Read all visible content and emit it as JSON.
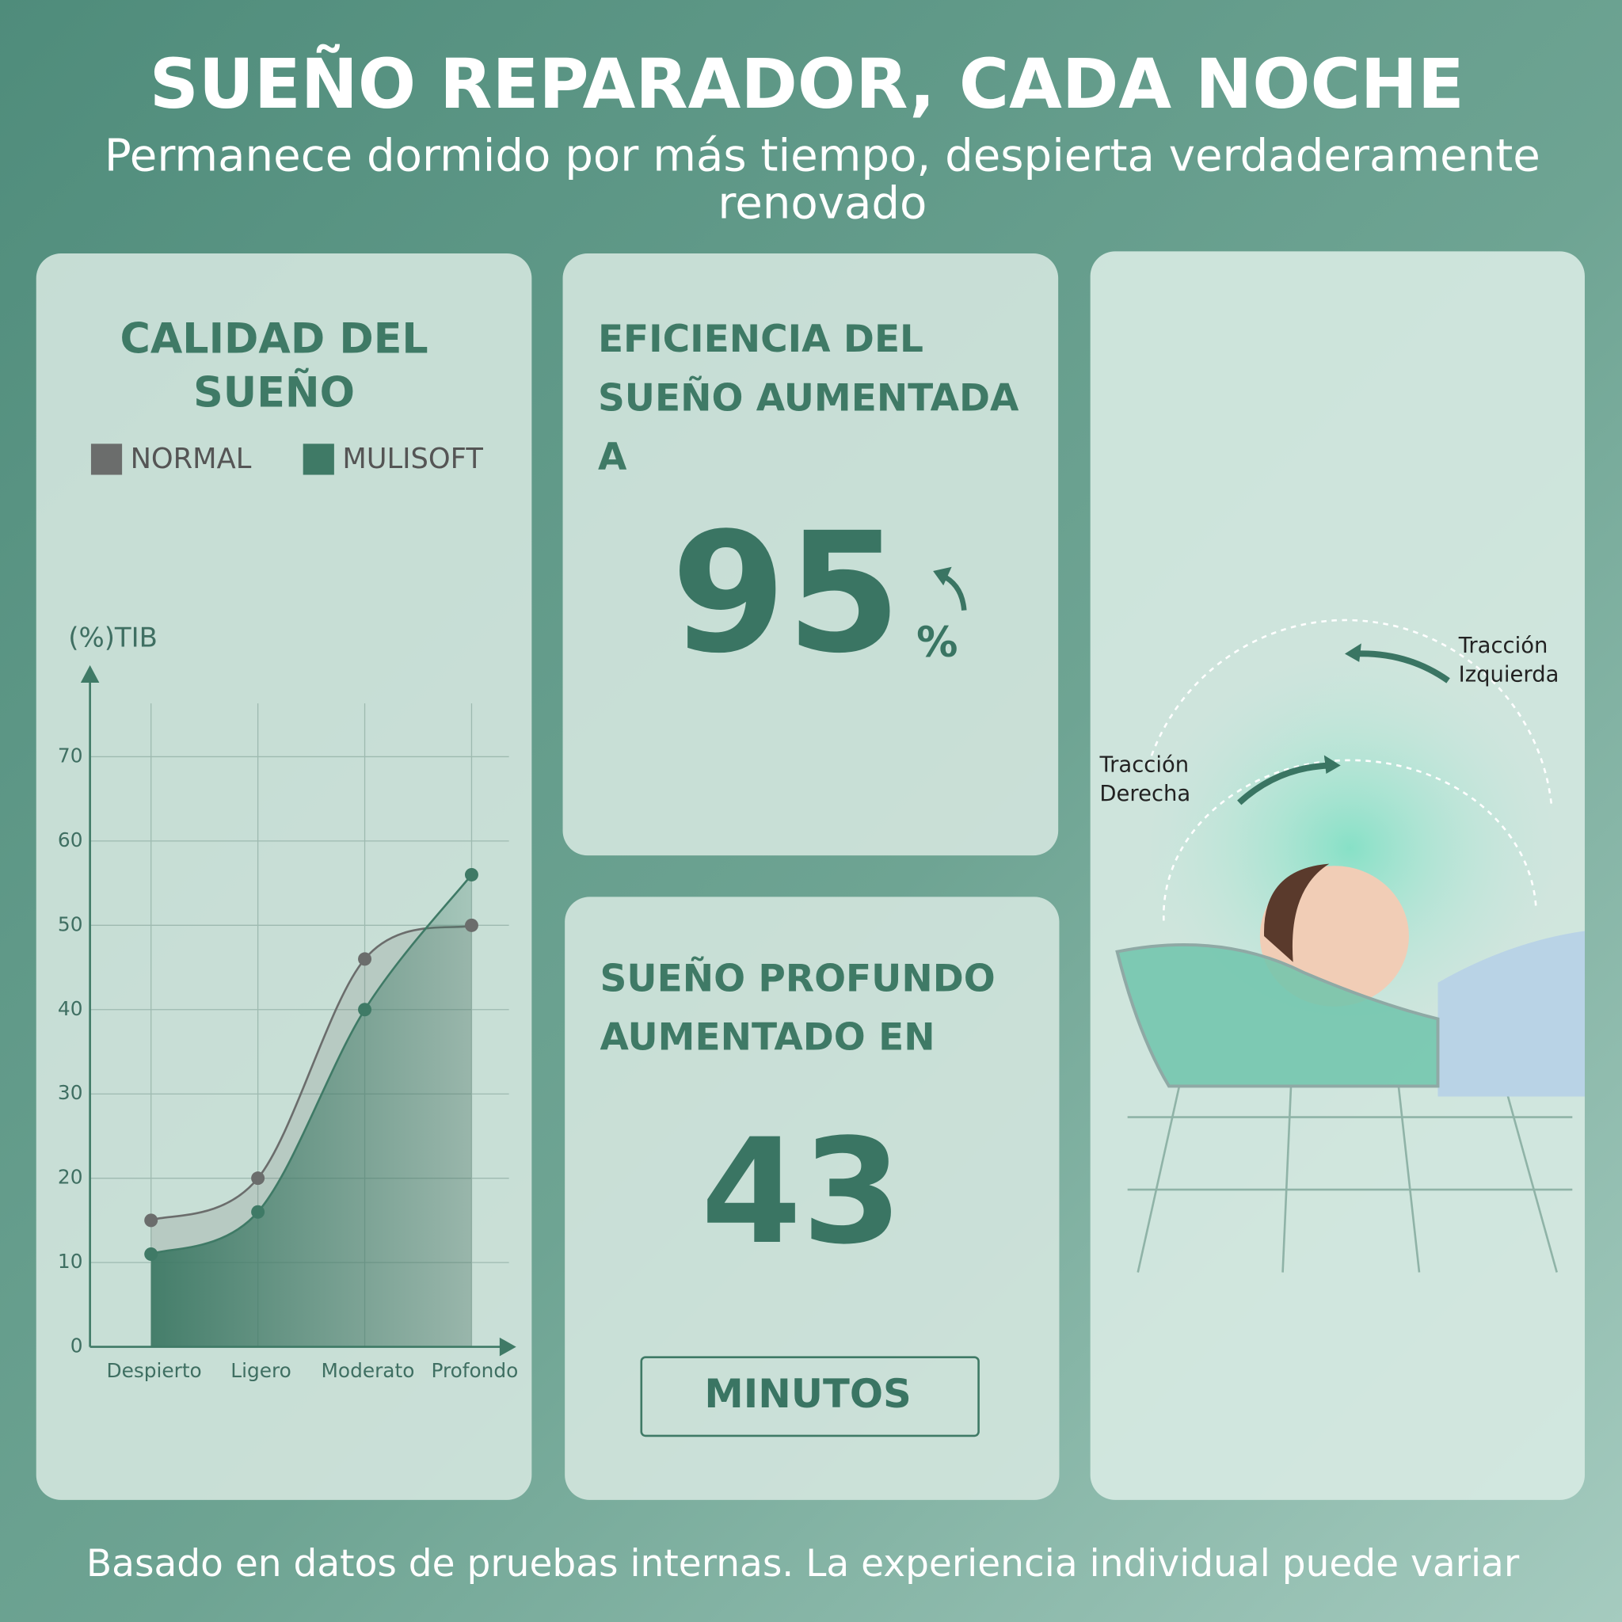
{
  "header": {
    "title": "SUEÑO REPARADOR, CADA NOCHE",
    "subtitle": "Permanece dormido por más tiempo, despierta verdaderamente renovado"
  },
  "chart_data": {
    "type": "line",
    "title": "CALIDAD DEL SUEÑO",
    "y_label": "(%)TIB",
    "categories": [
      "Despierto",
      "Ligero",
      "Moderato",
      "Profondo"
    ],
    "series": [
      {
        "name": "NORMAL",
        "color": "#6b6d6c",
        "values": [
          15,
          20,
          46,
          50
        ]
      },
      {
        "name": "MULISOFT",
        "color": "#3f7a66",
        "values": [
          11,
          16,
          40,
          56
        ]
      }
    ],
    "ylim": [
      0,
      80
    ],
    "yticks": [
      0,
      10,
      20,
      30,
      40,
      50,
      60,
      70
    ],
    "grid": true,
    "legend": "top"
  },
  "efficiency_card": {
    "title": "EFICIENCIA DEL SUEÑO AUMENTADA A",
    "value": 95,
    "unit": "%"
  },
  "deep_sleep_card": {
    "title": "SUEÑO PROFUNDO AUMENTADO EN",
    "value": 43,
    "unit": "MINUTOS"
  },
  "illustration": {
    "labels": [
      "Tracción Izquierda",
      "Tracción Derecha"
    ]
  },
  "footer": "Basado en datos de pruebas internas. La experiencia individual puede variar"
}
